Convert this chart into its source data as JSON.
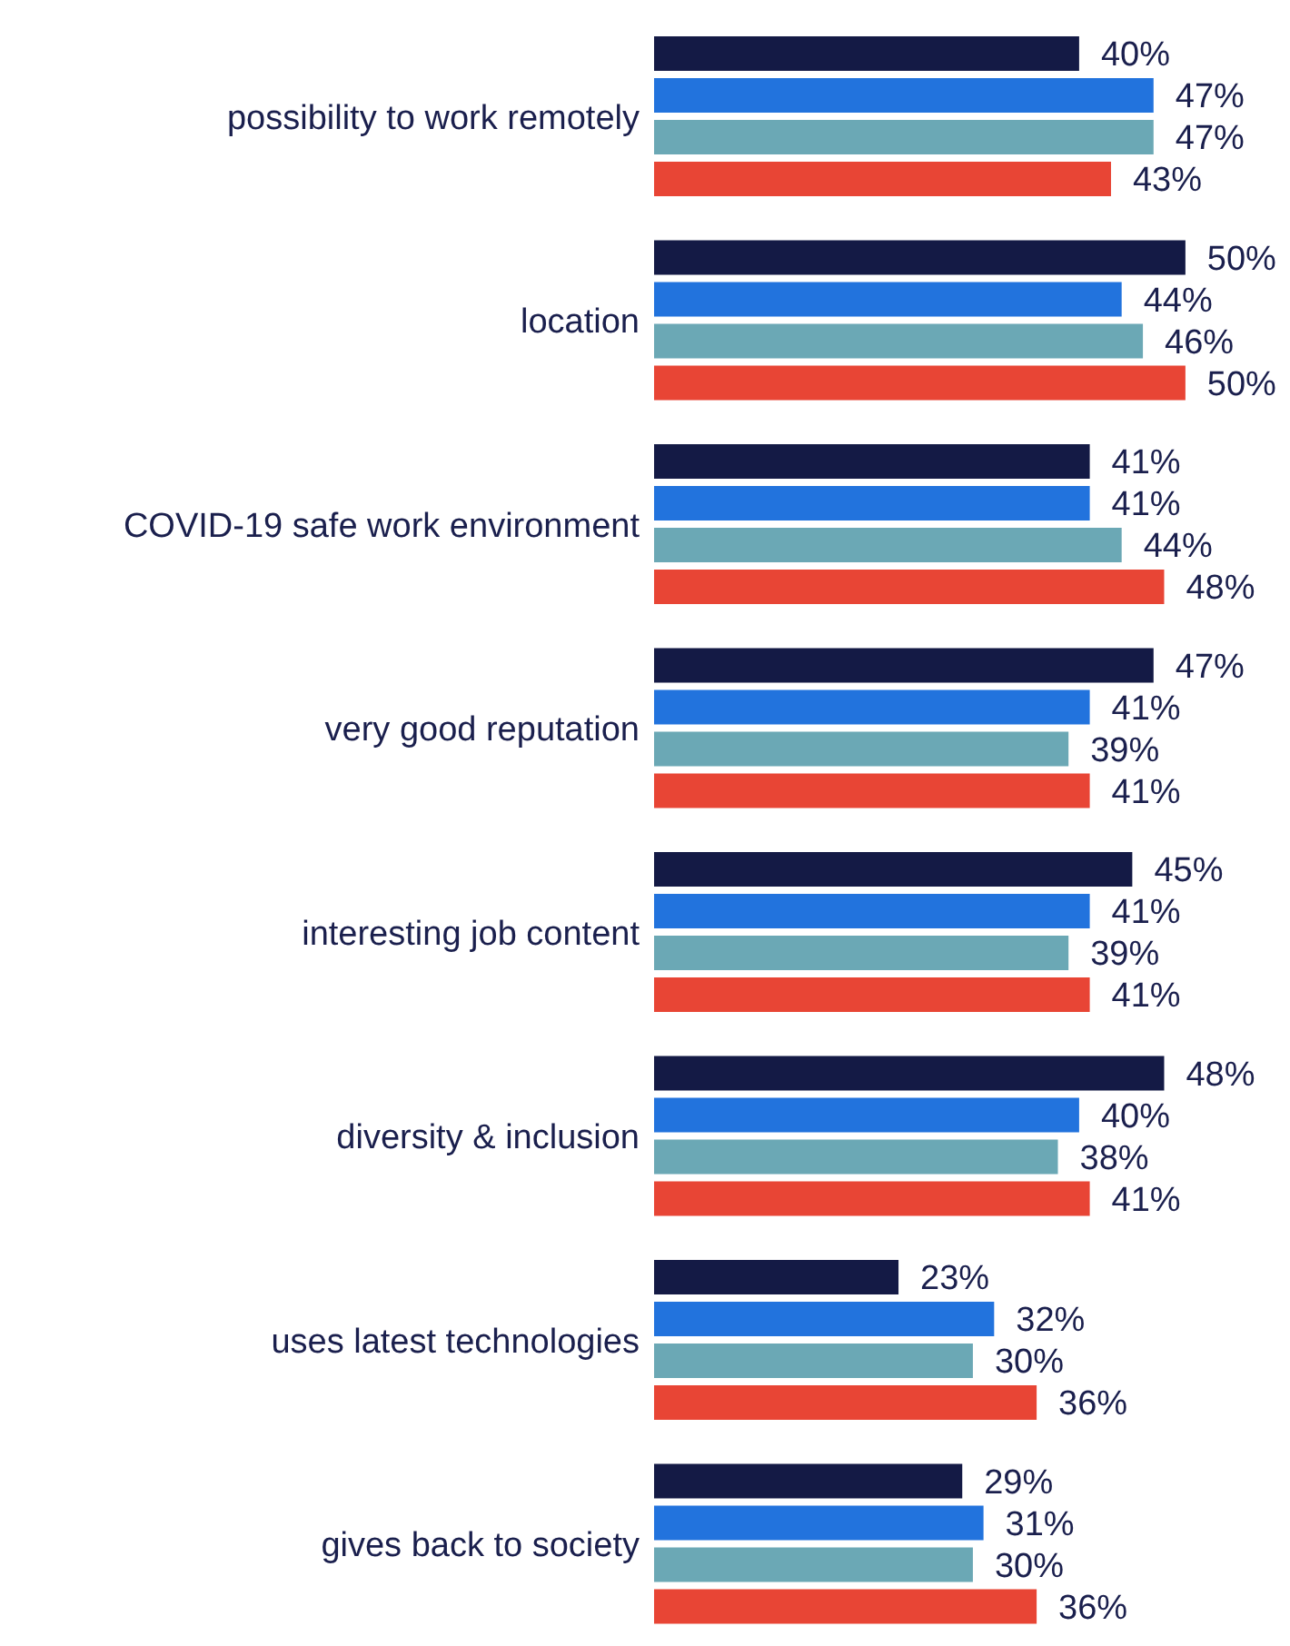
{
  "chart_data": {
    "type": "bar",
    "orientation": "horizontal",
    "categories": [
      "possibility to work remotely",
      "location",
      "COVID-19 safe work environment",
      "very good reputation",
      "interesting job content",
      "diversity & inclusion",
      "uses latest technologies",
      "gives back to society"
    ],
    "series": [
      {
        "color": "#141a45",
        "values": [
          40,
          50,
          41,
          47,
          45,
          48,
          23,
          29
        ],
        "value_labels": [
          "40%",
          "50%",
          "41%",
          "47%",
          "45%",
          "48%",
          "23%",
          "29%"
        ]
      },
      {
        "color": "#2273dd",
        "values": [
          47,
          44,
          41,
          41,
          41,
          40,
          32,
          31
        ],
        "value_labels": [
          "47%",
          "44%",
          "41%",
          "41%",
          "41%",
          "40%",
          "32%",
          "31%"
        ]
      },
      {
        "color": "#6ba8b5",
        "values": [
          47,
          46,
          44,
          39,
          39,
          38,
          30,
          30
        ],
        "value_labels": [
          "47%",
          "46%",
          "44%",
          "39%",
          "39%",
          "38%",
          "30%",
          "30%"
        ]
      },
      {
        "color": "#e84535",
        "values": [
          43,
          50,
          48,
          41,
          41,
          41,
          36,
          36
        ],
        "value_labels": [
          "43%",
          "50%",
          "48%",
          "41%",
          "41%",
          "41%",
          "36%",
          "36%"
        ]
      }
    ],
    "grid": false,
    "legend": false
  }
}
